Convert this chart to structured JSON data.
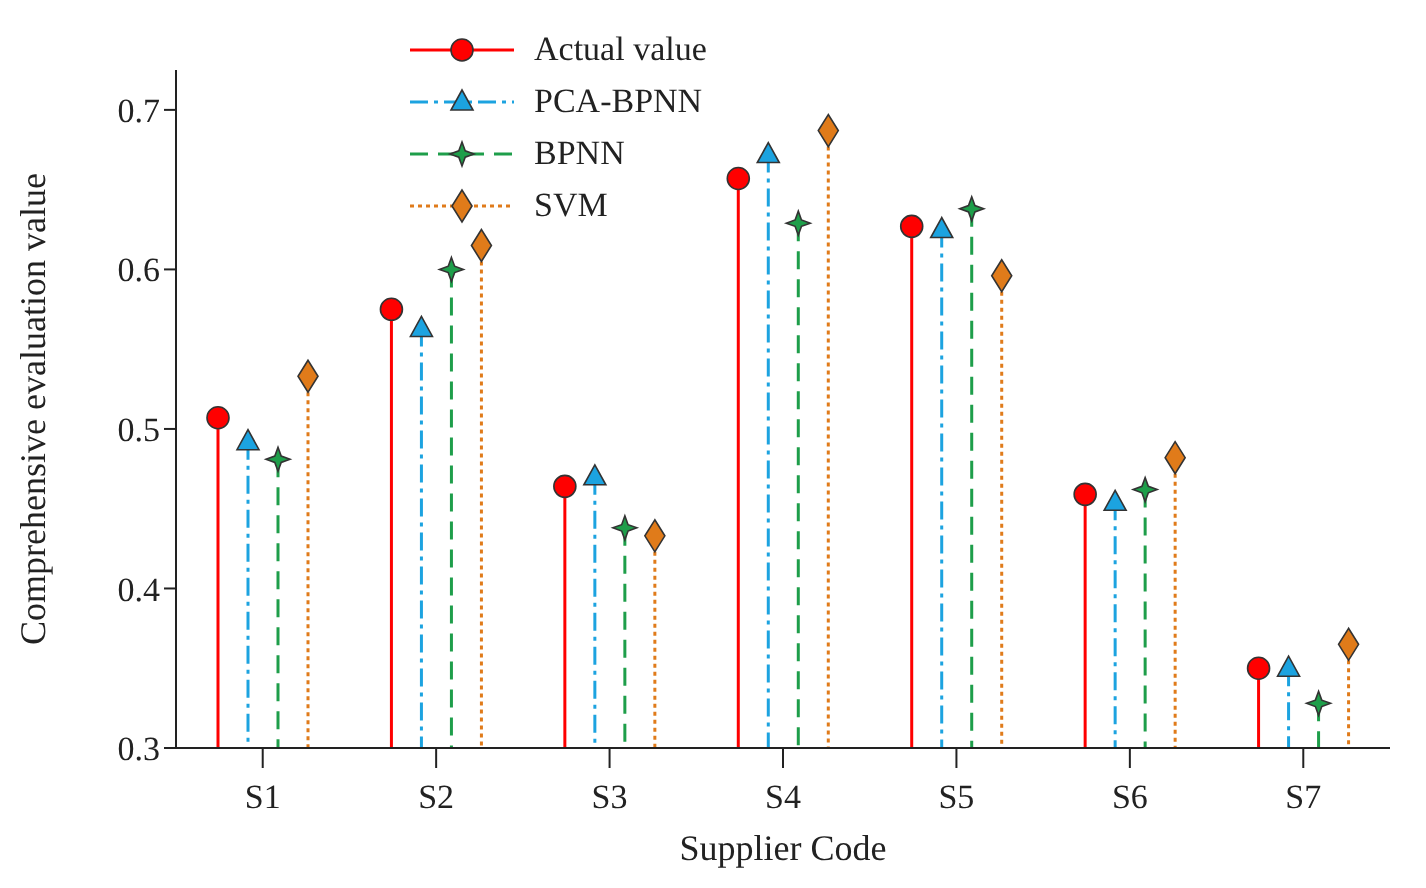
{
  "chart_data": {
    "type": "lollipop",
    "xlabel": "Supplier Code",
    "ylabel": "Comprehensive evaluation value",
    "categories": [
      "S1",
      "S2",
      "S3",
      "S4",
      "S5",
      "S6",
      "S7"
    ],
    "series": [
      {
        "name": "Actual value",
        "color": "#ff0000",
        "marker": "circle",
        "line_style": "solid",
        "values": [
          0.507,
          0.575,
          0.464,
          0.657,
          0.627,
          0.459,
          0.35
        ]
      },
      {
        "name": "PCA-BPNN",
        "color": "#1ca3e0",
        "marker": "triangle",
        "line_style": "dashdot",
        "values": [
          0.492,
          0.563,
          0.47,
          0.672,
          0.625,
          0.454,
          0.35
        ]
      },
      {
        "name": "BPNN",
        "color": "#1e9e4a",
        "marker": "star",
        "line_style": "dashed",
        "values": [
          0.481,
          0.6,
          0.438,
          0.629,
          0.638,
          0.462,
          0.328
        ]
      },
      {
        "name": "SVM",
        "color": "#e07b1a",
        "marker": "diamond",
        "line_style": "dotted",
        "values": [
          0.533,
          0.615,
          0.433,
          0.687,
          0.596,
          0.482,
          0.365
        ]
      }
    ],
    "ylim": [
      0.3,
      0.725
    ],
    "yticks": [
      0.3,
      0.4,
      0.5,
      0.6,
      0.7
    ],
    "grid": false,
    "legend": "top left"
  }
}
